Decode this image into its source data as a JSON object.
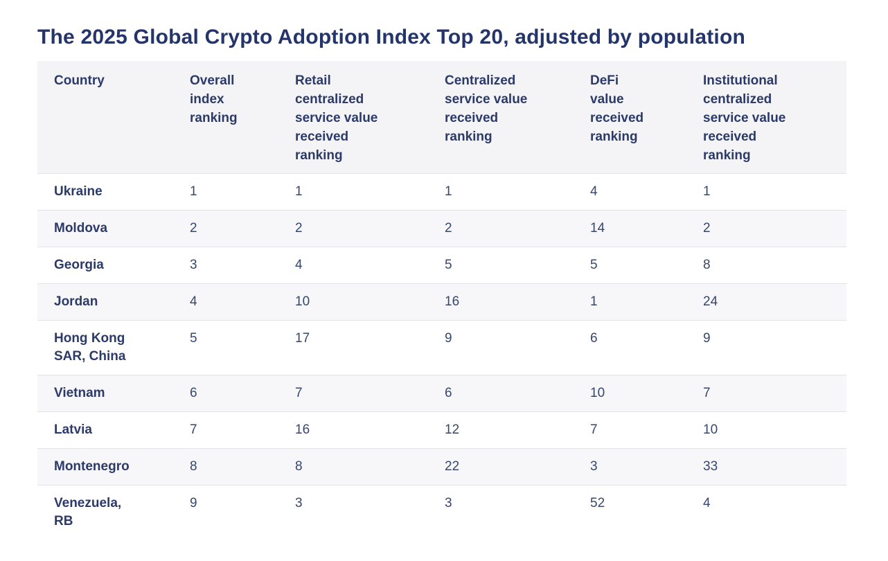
{
  "page": {
    "title": "The 2025 Global Crypto Adoption Index Top 20, adjusted by population"
  },
  "colors": {
    "title_text": "#24356b",
    "table_text": "#2e3f6e",
    "header_bg": "#f4f4f6",
    "zebra_row_bg": "#f7f7f9",
    "row_border": "#e3e3e7",
    "page_bg": "#ffffff"
  },
  "table": {
    "headers": [
      "Country",
      "Overall index ranking",
      "Retail centralized service value received ranking",
      "Centralized service value received ranking",
      "DeFi value received ranking",
      "Institutional centralized service value received ranking"
    ],
    "rows": [
      {
        "country": "Ukraine",
        "overall": "1",
        "retail": "1",
        "centralized": "1",
        "defi": "4",
        "institutional": "1"
      },
      {
        "country": "Moldova",
        "overall": "2",
        "retail": "2",
        "centralized": "2",
        "defi": "14",
        "institutional": "2"
      },
      {
        "country": "Georgia",
        "overall": "3",
        "retail": "4",
        "centralized": "5",
        "defi": "5",
        "institutional": "8"
      },
      {
        "country": "Jordan",
        "overall": "4",
        "retail": "10",
        "centralized": "16",
        "defi": "1",
        "institutional": "24"
      },
      {
        "country": "Hong Kong SAR, China",
        "overall": "5",
        "retail": "17",
        "centralized": "9",
        "defi": "6",
        "institutional": "9"
      },
      {
        "country": "Vietnam",
        "overall": "6",
        "retail": "7",
        "centralized": "6",
        "defi": "10",
        "institutional": "7"
      },
      {
        "country": "Latvia",
        "overall": "7",
        "retail": "16",
        "centralized": "12",
        "defi": "7",
        "institutional": "10"
      },
      {
        "country": "Montenegro",
        "overall": "8",
        "retail": "8",
        "centralized": "22",
        "defi": "3",
        "institutional": "33"
      },
      {
        "country": "Venezuela, RB",
        "overall": "9",
        "retail": "3",
        "centralized": "3",
        "defi": "52",
        "institutional": "4"
      }
    ]
  },
  "chart_data": {
    "type": "table",
    "title": "The 2025 Global Crypto Adoption Index Top 20, adjusted by population",
    "columns": [
      "Country",
      "Overall index ranking",
      "Retail centralized service value received ranking",
      "Centralized service value received ranking",
      "DeFi value received ranking",
      "Institutional centralized service value received ranking"
    ],
    "rows": [
      [
        "Ukraine",
        1,
        1,
        1,
        4,
        1
      ],
      [
        "Moldova",
        2,
        2,
        2,
        14,
        2
      ],
      [
        "Georgia",
        3,
        4,
        5,
        5,
        8
      ],
      [
        "Jordan",
        4,
        10,
        16,
        1,
        24
      ],
      [
        "Hong Kong SAR, China",
        5,
        17,
        9,
        6,
        9
      ],
      [
        "Vietnam",
        6,
        7,
        6,
        10,
        7
      ],
      [
        "Latvia",
        7,
        16,
        12,
        7,
        10
      ],
      [
        "Montenegro",
        8,
        8,
        22,
        3,
        33
      ],
      [
        "Venezuela, RB",
        9,
        3,
        3,
        52,
        4
      ]
    ],
    "layout_hints": {
      "zebra_striping": true,
      "header_band": true,
      "last_row_clipped_by_viewport": true
    }
  }
}
